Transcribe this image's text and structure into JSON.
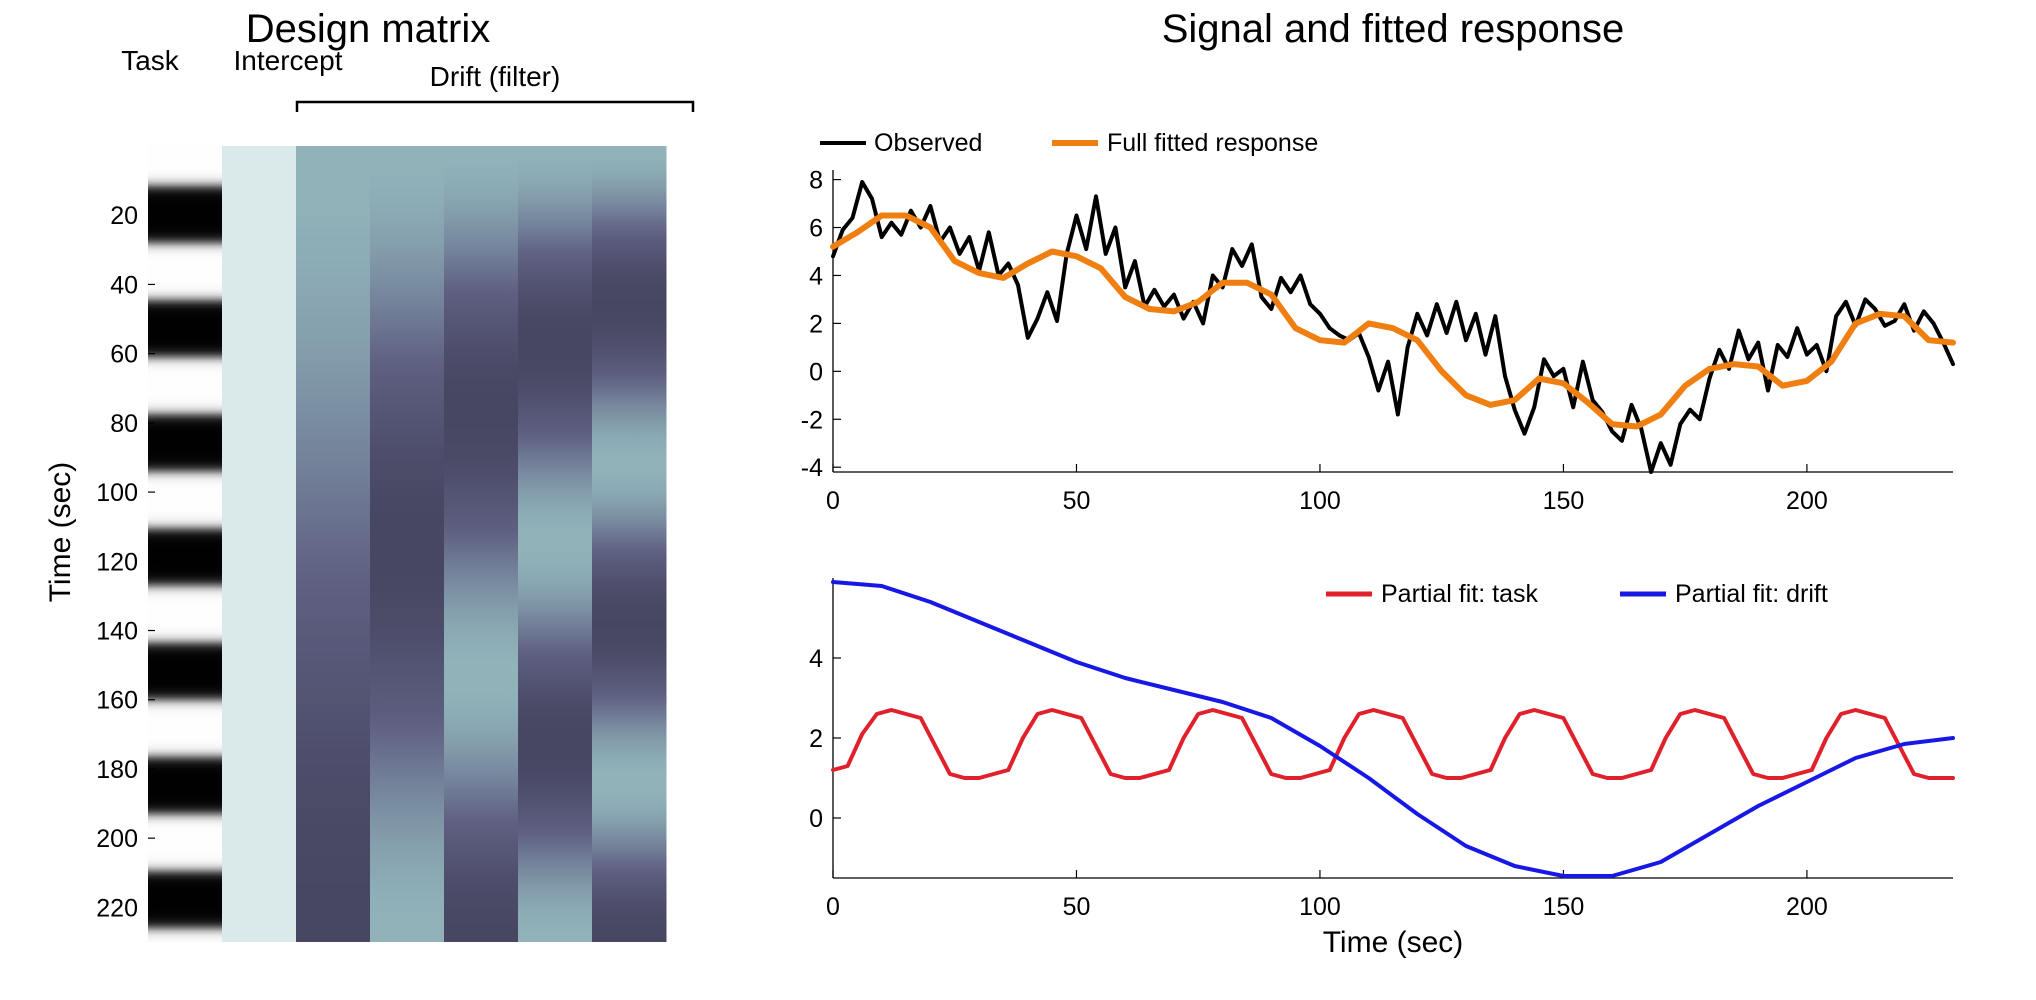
{
  "chart_data": [
    {
      "type": "heatmap",
      "title": "Design matrix",
      "ylabel": "Time (sec)",
      "ylim": [
        0,
        230
      ],
      "yticks": [
        20,
        40,
        60,
        80,
        100,
        120,
        140,
        160,
        180,
        200,
        220
      ],
      "columns": [
        {
          "label": "Task",
          "kind": "task",
          "period_sec": 33,
          "colors": [
            "#000000",
            "#ffffff"
          ]
        },
        {
          "label": "Intercept",
          "kind": "constant",
          "color": "#dae9ea"
        },
        {
          "label": "",
          "kind": "drift",
          "order": 1
        },
        {
          "label": "",
          "kind": "drift",
          "order": 2
        },
        {
          "label": "",
          "kind": "drift",
          "order": 3
        },
        {
          "label": "",
          "kind": "drift",
          "order": 4
        },
        {
          "label": "",
          "kind": "drift",
          "order": 5
        }
      ],
      "group_bracket": {
        "label": "Drift (filter)",
        "columns": [
          2,
          6
        ]
      },
      "colormap": [
        "#3f3f58",
        "#5f5f82",
        "#8fb0b8",
        "#dae9ea"
      ]
    },
    {
      "type": "line",
      "title": "Signal and fitted response",
      "xlim": [
        0,
        230
      ],
      "ylim": [
        -4.2,
        8.4
      ],
      "xticks": [
        0,
        50,
        100,
        150,
        200
      ],
      "yticks": [
        -4,
        -2,
        0,
        2,
        4,
        6,
        8
      ],
      "legend": "top-left",
      "series": [
        {
          "name": "Observed",
          "color": "#000000",
          "x": [
            0,
            2,
            4,
            6,
            8,
            10,
            12,
            14,
            16,
            18,
            20,
            22,
            24,
            26,
            28,
            30,
            32,
            34,
            36,
            38,
            40,
            42,
            44,
            46,
            48,
            50,
            52,
            54,
            56,
            58,
            60,
            62,
            64,
            66,
            68,
            70,
            72,
            74,
            76,
            78,
            80,
            82,
            84,
            86,
            88,
            90,
            92,
            94,
            96,
            98,
            100,
            102,
            104,
            106,
            108,
            110,
            112,
            114,
            116,
            118,
            120,
            122,
            124,
            126,
            128,
            130,
            132,
            134,
            136,
            138,
            140,
            142,
            144,
            146,
            148,
            150,
            152,
            154,
            156,
            158,
            160,
            162,
            164,
            166,
            168,
            170,
            172,
            174,
            176,
            178,
            180,
            182,
            184,
            186,
            188,
            190,
            192,
            194,
            196,
            198,
            200,
            202,
            204,
            206,
            208,
            210,
            212,
            214,
            216,
            218,
            220,
            222,
            224,
            226,
            228,
            230
          ],
          "y": [
            4.8,
            5.9,
            6.4,
            7.9,
            7.2,
            5.6,
            6.2,
            5.7,
            6.7,
            6.0,
            6.9,
            5.4,
            6.0,
            4.9,
            5.6,
            4.2,
            5.8,
            4.0,
            4.5,
            3.6,
            1.4,
            2.2,
            3.3,
            2.1,
            4.9,
            6.5,
            5.1,
            7.3,
            4.9,
            6.0,
            3.5,
            4.6,
            2.7,
            3.4,
            2.7,
            3.2,
            2.2,
            2.9,
            2.0,
            4.0,
            3.5,
            5.1,
            4.4,
            5.3,
            3.1,
            2.6,
            3.9,
            3.3,
            4.0,
            2.8,
            2.4,
            1.8,
            1.5,
            1.3,
            1.6,
            0.6,
            -0.8,
            0.4,
            -1.8,
            1.0,
            2.4,
            1.5,
            2.8,
            1.6,
            2.9,
            1.3,
            2.4,
            0.7,
            2.3,
            -0.2,
            -1.6,
            -2.6,
            -1.5,
            0.5,
            -0.2,
            0.1,
            -1.5,
            0.4,
            -1.2,
            -1.7,
            -2.5,
            -2.9,
            -1.4,
            -2.4,
            -4.2,
            -3.0,
            -3.9,
            -2.2,
            -1.6,
            -2.0,
            -0.3,
            0.9,
            0.1,
            1.7,
            0.5,
            1.2,
            -0.8,
            1.1,
            0.6,
            1.8,
            0.7,
            1.1,
            0.0,
            2.3,
            2.9,
            1.9,
            3.0,
            2.6,
            1.9,
            2.1,
            2.8,
            1.7,
            2.5,
            2.0,
            1.2,
            0.3
          ]
        },
        {
          "name": "Full fitted response",
          "color": "#f07f12",
          "x": [
            0,
            5,
            10,
            15,
            20,
            25,
            30,
            35,
            40,
            45,
            50,
            55,
            60,
            65,
            70,
            75,
            80,
            85,
            90,
            95,
            100,
            105,
            110,
            115,
            120,
            125,
            130,
            135,
            140,
            145,
            150,
            155,
            160,
            165,
            170,
            175,
            180,
            185,
            190,
            195,
            200,
            205,
            210,
            215,
            220,
            225,
            230
          ],
          "y": [
            5.2,
            5.8,
            6.5,
            6.5,
            6.0,
            4.6,
            4.1,
            3.9,
            4.5,
            5.0,
            4.8,
            4.3,
            3.1,
            2.6,
            2.5,
            2.9,
            3.7,
            3.7,
            3.2,
            1.8,
            1.3,
            1.2,
            2.0,
            1.8,
            1.3,
            0.0,
            -1.0,
            -1.4,
            -1.2,
            -0.3,
            -0.5,
            -1.3,
            -2.2,
            -2.3,
            -1.8,
            -0.6,
            0.1,
            0.3,
            0.2,
            -0.6,
            -0.4,
            0.4,
            2.0,
            2.4,
            2.3,
            1.3,
            1.2
          ]
        }
      ]
    },
    {
      "type": "line",
      "xlabel": "Time (sec)",
      "xlim": [
        0,
        230
      ],
      "ylim": [
        -1.5,
        6.0
      ],
      "xticks": [
        0,
        50,
        100,
        150,
        200
      ],
      "yticks": [
        0,
        2,
        4
      ],
      "legend": "top-right",
      "series": [
        {
          "name": "Partial fit: task",
          "color": "#e0202a",
          "x": [
            0,
            3,
            6,
            9,
            12,
            15,
            18,
            21,
            24,
            27,
            30,
            33,
            36,
            39,
            42,
            45,
            48,
            51,
            54,
            57,
            60,
            63,
            66,
            69,
            72,
            75,
            78,
            81,
            84,
            87,
            90,
            93,
            96,
            99,
            102,
            105,
            108,
            111,
            114,
            117,
            120,
            123,
            126,
            129,
            132,
            135,
            138,
            141,
            144,
            147,
            150,
            153,
            156,
            159,
            162,
            165,
            168,
            171,
            174,
            177,
            180,
            183,
            186,
            189,
            192,
            195,
            198,
            201,
            204,
            207,
            210,
            213,
            216,
            219,
            222,
            225,
            228,
            230
          ],
          "y": [
            1.2,
            1.3,
            2.1,
            2.6,
            2.7,
            2.6,
            2.5,
            1.8,
            1.1,
            1.0,
            1.0,
            1.1,
            1.2,
            2.0,
            2.6,
            2.7,
            2.6,
            2.5,
            1.8,
            1.1,
            1.0,
            1.0,
            1.1,
            1.2,
            2.0,
            2.6,
            2.7,
            2.6,
            2.5,
            1.8,
            1.1,
            1.0,
            1.0,
            1.1,
            1.2,
            2.0,
            2.6,
            2.7,
            2.6,
            2.5,
            1.8,
            1.1,
            1.0,
            1.0,
            1.1,
            1.2,
            2.0,
            2.6,
            2.7,
            2.6,
            2.5,
            1.8,
            1.1,
            1.0,
            1.0,
            1.1,
            1.2,
            2.0,
            2.6,
            2.7,
            2.6,
            2.5,
            1.8,
            1.1,
            1.0,
            1.0,
            1.1,
            1.2,
            2.0,
            2.6,
            2.7,
            2.6,
            2.5,
            1.8,
            1.1,
            1.0,
            1.0,
            1.0
          ]
        },
        {
          "name": "Partial fit: drift",
          "color": "#1818e6",
          "x": [
            0,
            10,
            20,
            30,
            40,
            50,
            60,
            70,
            80,
            90,
            100,
            110,
            120,
            130,
            140,
            150,
            160,
            170,
            180,
            190,
            200,
            210,
            220,
            230
          ],
          "y": [
            5.9,
            5.8,
            5.4,
            4.9,
            4.4,
            3.9,
            3.5,
            3.2,
            2.9,
            2.5,
            1.8,
            1.0,
            0.1,
            -0.7,
            -1.2,
            -1.45,
            -1.45,
            -1.1,
            -0.4,
            0.3,
            0.9,
            1.5,
            1.85,
            2.0
          ]
        }
      ]
    }
  ]
}
